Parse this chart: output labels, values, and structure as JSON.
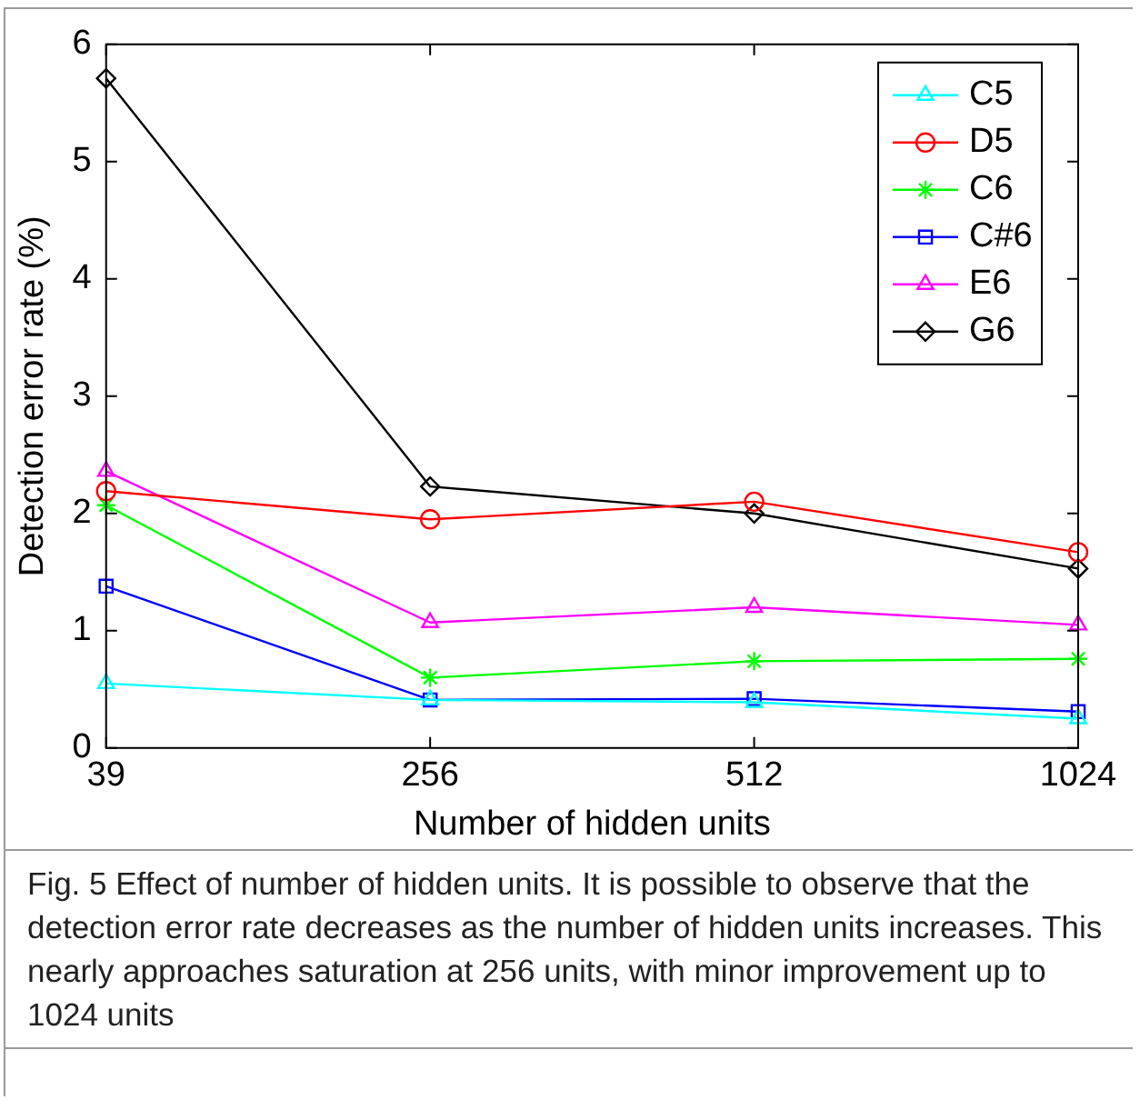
{
  "chart_data": {
    "type": "line",
    "xlabel": "Number of hidden units",
    "ylabel": "Detection error rate (%)",
    "categories": [
      "39",
      "256",
      "512",
      "1024"
    ],
    "ylim": [
      0,
      6
    ],
    "yticks": [
      0,
      1,
      2,
      3,
      4,
      5,
      6
    ],
    "grid": false,
    "legend": "top right",
    "series": [
      {
        "name": "C5",
        "color": "#00ffff",
        "marker": "triangle",
        "values": [
          0.55,
          0.41,
          0.39,
          0.25
        ]
      },
      {
        "name": "D5",
        "color": "#ff0000",
        "marker": "circle",
        "values": [
          2.19,
          1.95,
          2.1,
          1.67
        ]
      },
      {
        "name": "C6",
        "color": "#00ff00",
        "marker": "cross",
        "values": [
          2.07,
          0.6,
          0.74,
          0.76
        ]
      },
      {
        "name": "C#6",
        "color": "#0000ff",
        "marker": "square",
        "values": [
          1.38,
          0.41,
          0.42,
          0.31
        ]
      },
      {
        "name": "E6",
        "color": "#ff00ff",
        "marker": "triangle",
        "values": [
          2.36,
          1.07,
          1.2,
          1.05
        ]
      },
      {
        "name": "G6",
        "color": "#000000",
        "marker": "diamond",
        "values": [
          5.71,
          2.23,
          2.0,
          1.53
        ]
      }
    ],
    "annotations": [
      "Fig. 5 Effect of number of hidden units. It is possible to observe that the detection error rate decreases as the number of hidden units increases. This nearly approaches saturation at 256 units, with minor improvement up to 1024 units"
    ]
  }
}
